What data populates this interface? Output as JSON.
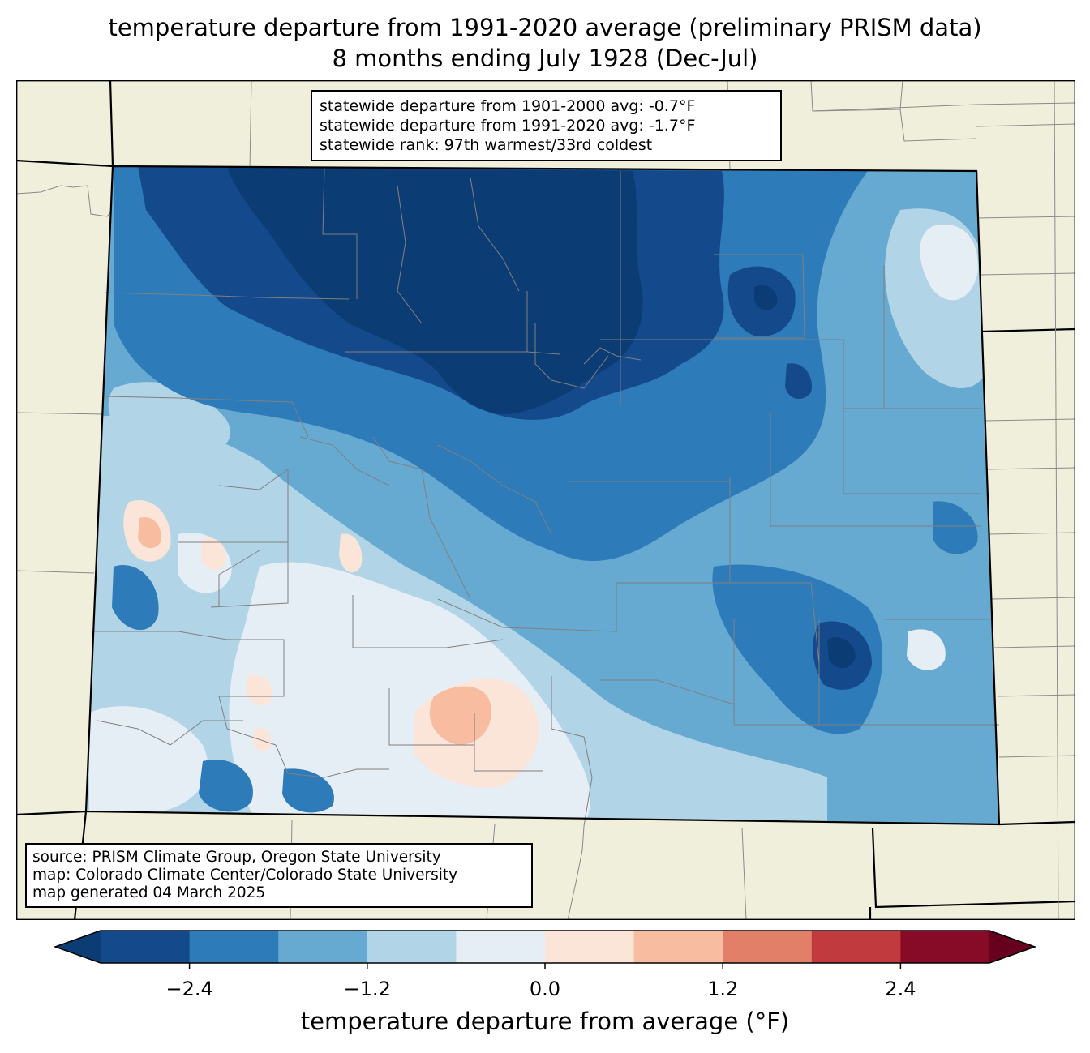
{
  "title_line1": "temperature departure from 1991-2020 average (preliminary PRISM data)",
  "title_line2": "8 months ending July 1928 (Dec-Jul)",
  "stats": [
    "statewide departure from 1901-2000 avg: -0.7°F",
    "statewide departure from 1991-2020 avg: -1.7°F",
    "statewide rank: 97th warmest/33rd coldest"
  ],
  "source": [
    "source: PRISM Climate Group, Oregon State University",
    "map: Colorado Climate Center/Colorado State University",
    "map generated 04 March 2025"
  ],
  "colorbar": {
    "label": "temperature departure from average (°F)",
    "ticks": [
      "−2.4",
      "−1.2",
      "0.0",
      "1.2",
      "2.4"
    ],
    "tick_values": [
      -2.4,
      -1.2,
      0.0,
      1.2,
      2.4
    ],
    "bounds": [
      -3.0,
      -2.4,
      -1.8,
      -1.2,
      -0.6,
      0.0,
      0.6,
      1.2,
      1.8,
      2.4,
      3.0
    ],
    "colors": [
      "#0b3d74",
      "#14498b",
      "#2e7bb9",
      "#66a9d1",
      "#b1d4e7",
      "#e6eef5",
      "#fbe4d8",
      "#f8bca0",
      "#e27f68",
      "#c03a3e",
      "#870b27",
      "#67001f"
    ]
  },
  "colors": {
    "land": "#f0efdc",
    "boundary": "#000000",
    "county": "#808080"
  }
}
